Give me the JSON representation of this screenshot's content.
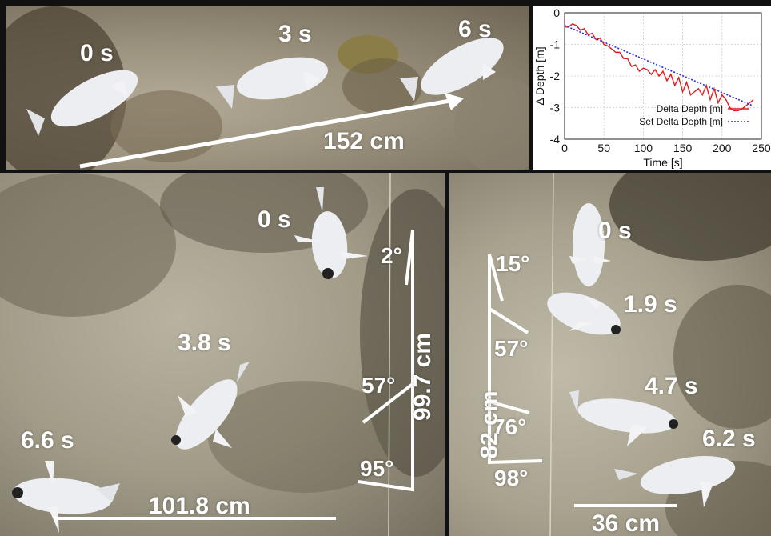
{
  "top_panel": {
    "time_labels": [
      "0 s",
      "3 s",
      "6 s"
    ],
    "distance_label": "152 cm"
  },
  "bottom_left_panel": {
    "time_labels": [
      "0 s",
      "3.8 s",
      "6.6 s"
    ],
    "angle_labels": [
      "2°",
      "57°",
      "95°"
    ],
    "vertical_distance_label": "99.7 cm",
    "horizontal_distance_label": "101.8 cm"
  },
  "bottom_right_panel": {
    "time_labels": [
      "0 s",
      "1.9 s",
      "4.7 s",
      "6.2 s"
    ],
    "angle_labels": [
      "15°",
      "57°",
      "76°",
      "98°"
    ],
    "vertical_distance_label": "82 cm",
    "horizontal_distance_label": "36 cm"
  },
  "chart_data": {
    "type": "line",
    "xlabel": "Time [s]",
    "ylabel": "Δ Depth [m]",
    "xlim": [
      0,
      250
    ],
    "ylim": [
      -4,
      0
    ],
    "xticks": [
      0,
      50,
      100,
      150,
      200,
      250
    ],
    "yticks": [
      0,
      -1,
      -2,
      -3,
      -4
    ],
    "grid": true,
    "legend_position": "bottom-right",
    "series": [
      {
        "name": "Delta Depth [m]",
        "color": "#e41a1c",
        "style": "solid",
        "x": [
          0,
          5,
          10,
          15,
          20,
          25,
          30,
          35,
          40,
          45,
          50,
          55,
          60,
          65,
          70,
          75,
          80,
          85,
          90,
          95,
          100,
          105,
          110,
          115,
          120,
          125,
          130,
          135,
          140,
          145,
          150,
          155,
          160,
          165,
          170,
          175,
          180,
          185,
          190,
          195,
          200,
          205,
          210,
          215,
          220,
          225,
          230,
          235,
          240
        ],
        "y": [
          -0.45,
          -0.45,
          -0.35,
          -0.4,
          -0.55,
          -0.5,
          -0.7,
          -0.65,
          -0.85,
          -0.8,
          -1.0,
          -1.05,
          -1.15,
          -1.25,
          -1.25,
          -1.45,
          -1.45,
          -1.7,
          -1.65,
          -1.85,
          -1.75,
          -1.8,
          -1.95,
          -1.8,
          -2.0,
          -1.85,
          -2.15,
          -1.95,
          -2.3,
          -2.05,
          -2.5,
          -2.2,
          -2.6,
          -2.5,
          -2.4,
          -2.6,
          -2.3,
          -2.75,
          -2.4,
          -2.85,
          -2.6,
          -2.75,
          -3.0,
          -3.1,
          -3.1,
          -3.05,
          -2.95,
          -2.85,
          -2.75
        ]
      },
      {
        "name": "Set Delta Depth [m]",
        "color": "#2b2bd6",
        "style": "dotted",
        "x": [
          0,
          240
        ],
        "y": [
          -0.4,
          -2.95
        ]
      }
    ]
  }
}
